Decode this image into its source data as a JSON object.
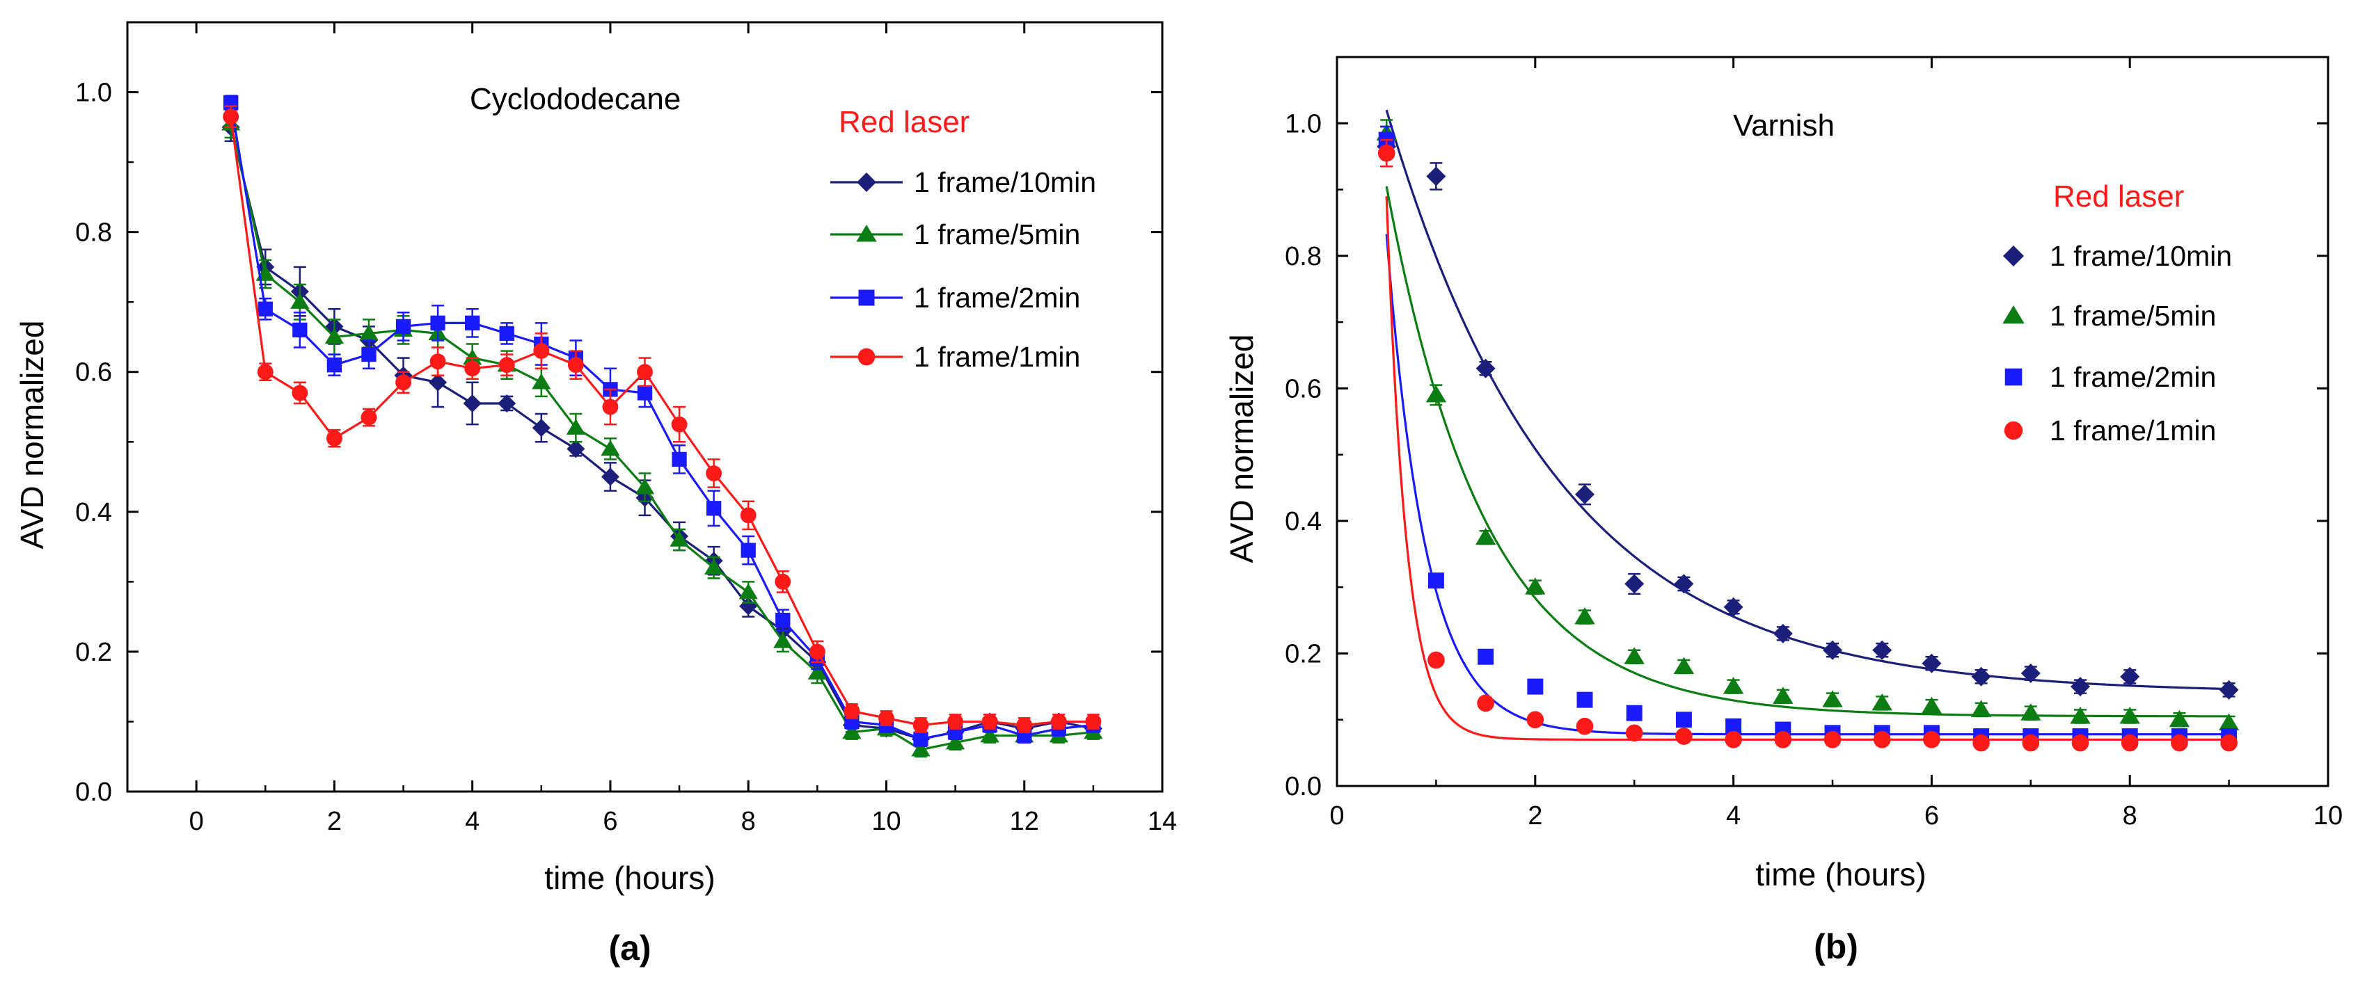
{
  "colors": {
    "navy": "#1c1f7a",
    "green": "#0b7d12",
    "blue": "#1a1aff",
    "red": "#ff1a1a",
    "legend_title": "#ff1a1a"
  },
  "chart_data": [
    {
      "type": "line",
      "panel_label": "(a)",
      "title": "Cyclododecane",
      "xlabel": "time (hours)",
      "ylabel": "AVD normalized",
      "xlim": [
        -1,
        14
      ],
      "ylim": [
        0,
        1.1
      ],
      "xticks": [
        0,
        2,
        4,
        6,
        8,
        10,
        12,
        14
      ],
      "yticks": [
        0.0,
        0.2,
        0.4,
        0.6,
        0.8,
        1.0
      ],
      "xtick_labels": [
        "0",
        "2",
        "4",
        "6",
        "8",
        "10",
        "12",
        "14"
      ],
      "ytick_labels": [
        "0.0",
        "0.2",
        "0.4",
        "0.6",
        "0.8",
        "1.0"
      ],
      "legend_title": "Red laser",
      "legend_position": "top-right",
      "x": [
        0.5,
        1,
        1.5,
        2,
        2.5,
        3,
        3.5,
        4,
        4.5,
        5,
        5.5,
        6,
        6.5,
        7,
        7.5,
        8,
        8.5,
        9,
        9.5,
        10,
        10.5,
        11,
        11.5,
        12,
        12.5,
        13
      ],
      "series": [
        {
          "name": "1 frame/10min",
          "color": "navy",
          "marker": "diamond",
          "values": [
            0.95,
            0.75,
            0.715,
            0.665,
            0.645,
            0.595,
            0.585,
            0.555,
            0.555,
            0.52,
            0.49,
            0.45,
            0.42,
            0.365,
            0.33,
            0.265,
            0.23,
            0.185,
            0.095,
            0.09,
            0.075,
            0.085,
            0.1,
            0.09,
            0.1,
            0.09
          ],
          "errors": [
            0.02,
            0.025,
            0.035,
            0.025,
            0.02,
            0.025,
            0.035,
            0.03,
            0.01,
            0.02,
            0.01,
            0.02,
            0.025,
            0.02,
            0.02,
            0.015,
            0.02,
            0.02,
            0.01,
            0.01,
            0.01,
            0.01,
            0.01,
            0.01,
            0.01,
            0.01
          ]
        },
        {
          "name": "1 frame/5min",
          "color": "green",
          "marker": "triangle",
          "values": [
            0.955,
            0.74,
            0.7,
            0.65,
            0.655,
            0.66,
            0.655,
            0.62,
            0.61,
            0.585,
            0.52,
            0.49,
            0.435,
            0.36,
            0.32,
            0.285,
            0.215,
            0.17,
            0.085,
            0.09,
            0.06,
            0.07,
            0.08,
            0.08,
            0.08,
            0.085
          ],
          "errors": [
            0.02,
            0.02,
            0.025,
            0.025,
            0.02,
            0.02,
            0.02,
            0.02,
            0.02,
            0.02,
            0.02,
            0.015,
            0.02,
            0.015,
            0.015,
            0.015,
            0.015,
            0.015,
            0.01,
            0.01,
            0.01,
            0.01,
            0.01,
            0.01,
            0.01,
            0.01
          ]
        },
        {
          "name": "1 frame/2min",
          "color": "blue",
          "marker": "square",
          "values": [
            0.985,
            0.69,
            0.66,
            0.61,
            0.625,
            0.665,
            0.67,
            0.67,
            0.655,
            0.64,
            0.62,
            0.575,
            0.57,
            0.475,
            0.405,
            0.345,
            0.245,
            0.19,
            0.1,
            0.095,
            0.075,
            0.085,
            0.095,
            0.08,
            0.09,
            0.095
          ],
          "errors": [
            0.01,
            0.015,
            0.025,
            0.015,
            0.02,
            0.02,
            0.025,
            0.02,
            0.015,
            0.03,
            0.025,
            0.03,
            0.02,
            0.02,
            0.025,
            0.02,
            0.015,
            0.015,
            0.01,
            0.01,
            0.01,
            0.01,
            0.01,
            0.01,
            0.01,
            0.01
          ]
        },
        {
          "name": "1 frame/1min",
          "color": "red",
          "marker": "circle",
          "values": [
            0.965,
            0.6,
            0.57,
            0.505,
            0.535,
            0.585,
            0.615,
            0.605,
            0.61,
            0.63,
            0.61,
            0.55,
            0.6,
            0.525,
            0.455,
            0.395,
            0.3,
            0.2,
            0.115,
            0.105,
            0.095,
            0.1,
            0.1,
            0.095,
            0.1,
            0.1
          ],
          "errors": [
            0.015,
            0.012,
            0.015,
            0.012,
            0.012,
            0.015,
            0.02,
            0.015,
            0.015,
            0.025,
            0.02,
            0.025,
            0.02,
            0.025,
            0.02,
            0.02,
            0.015,
            0.015,
            0.01,
            0.01,
            0.01,
            0.01,
            0.01,
            0.01,
            0.01,
            0.01
          ]
        }
      ]
    },
    {
      "type": "scatter",
      "panel_label": "(b)",
      "title": "Varnish",
      "xlabel": "time (hours)",
      "ylabel": "AVD normalized",
      "xlim": [
        0,
        10
      ],
      "ylim": [
        0,
        1.1
      ],
      "xticks": [
        0,
        2,
        4,
        6,
        8,
        10
      ],
      "yticks": [
        0.0,
        0.2,
        0.4,
        0.6,
        0.8,
        1.0
      ],
      "xtick_labels": [
        "0",
        "2",
        "4",
        "6",
        "8",
        "10"
      ],
      "ytick_labels": [
        "0.0",
        "0.2",
        "0.4",
        "0.6",
        "0.8",
        "1.0"
      ],
      "legend_title": "Red laser",
      "legend_position": "right",
      "x": [
        0.5,
        1,
        1.5,
        2,
        2.5,
        3,
        3.5,
        4,
        4.5,
        5,
        5.5,
        6,
        6.5,
        7,
        7.5,
        8,
        8.5,
        9
      ],
      "series": [
        {
          "name": "1 frame/10min",
          "color": "navy",
          "marker": "diamond",
          "values": [
            0.965,
            0.92,
            0.63,
            null,
            0.44,
            0.305,
            0.305,
            0.27,
            0.23,
            0.205,
            0.205,
            0.185,
            0.165,
            0.17,
            0.15,
            0.165,
            null,
            0.145
          ],
          "errors": [
            0.03,
            0.02,
            0.01,
            0,
            0.015,
            0.015,
            0.01,
            0.01,
            0.01,
            0.01,
            0.01,
            0.01,
            0.01,
            0.01,
            0.01,
            0.01,
            0,
            0.01
          ],
          "fit": {
            "a": 0.88,
            "k": 0.58,
            "c": 0.14
          }
        },
        {
          "name": "1 frame/5min",
          "color": "green",
          "marker": "triangle",
          "values": [
            0.985,
            0.59,
            0.375,
            0.3,
            0.255,
            0.195,
            0.18,
            0.15,
            0.135,
            0.13,
            0.125,
            0.12,
            0.115,
            0.11,
            0.105,
            0.105,
            0.1,
            0.095
          ],
          "errors": [
            0.02,
            0.015,
            0.01,
            0.01,
            0.01,
            0.01,
            0.01,
            0.01,
            0.01,
            0.01,
            0.01,
            0.01,
            0.01,
            0.01,
            0.01,
            0.01,
            0.01,
            0.01
          ],
          "fit": {
            "a": 0.8,
            "k": 1.0,
            "c": 0.105
          }
        },
        {
          "name": "1 frame/2min",
          "color": "blue",
          "marker": "square",
          "values": [
            0.975,
            0.31,
            0.195,
            0.15,
            0.13,
            0.11,
            0.1,
            0.09,
            0.085,
            0.08,
            0.08,
            0.08,
            0.075,
            0.075,
            0.075,
            0.075,
            0.075,
            0.075
          ],
          "errors": [
            0.02,
            0.01,
            0.01,
            0.008,
            0.008,
            0.008,
            0.008,
            0.008,
            0.008,
            0.008,
            0.008,
            0.008,
            0.008,
            0.008,
            0.008,
            0.008,
            0.008,
            0.008
          ],
          "fit": {
            "a": 0.755,
            "k": 2.5,
            "c": 0.078
          }
        },
        {
          "name": "1 frame/1min",
          "color": "red",
          "marker": "circle",
          "values": [
            0.955,
            0.19,
            0.125,
            0.1,
            0.09,
            0.08,
            0.075,
            0.07,
            0.07,
            0.07,
            0.07,
            0.07,
            0.065,
            0.065,
            0.065,
            0.065,
            0.065,
            0.065
          ],
          "errors": [
            0.02,
            0.008,
            0.008,
            0.006,
            0.006,
            0.006,
            0.006,
            0.006,
            0.006,
            0.006,
            0.006,
            0.006,
            0.006,
            0.006,
            0.006,
            0.006,
            0.006,
            0.006
          ],
          "fit": {
            "a": 0.82,
            "k": 5.0,
            "c": 0.07
          }
        }
      ]
    }
  ]
}
